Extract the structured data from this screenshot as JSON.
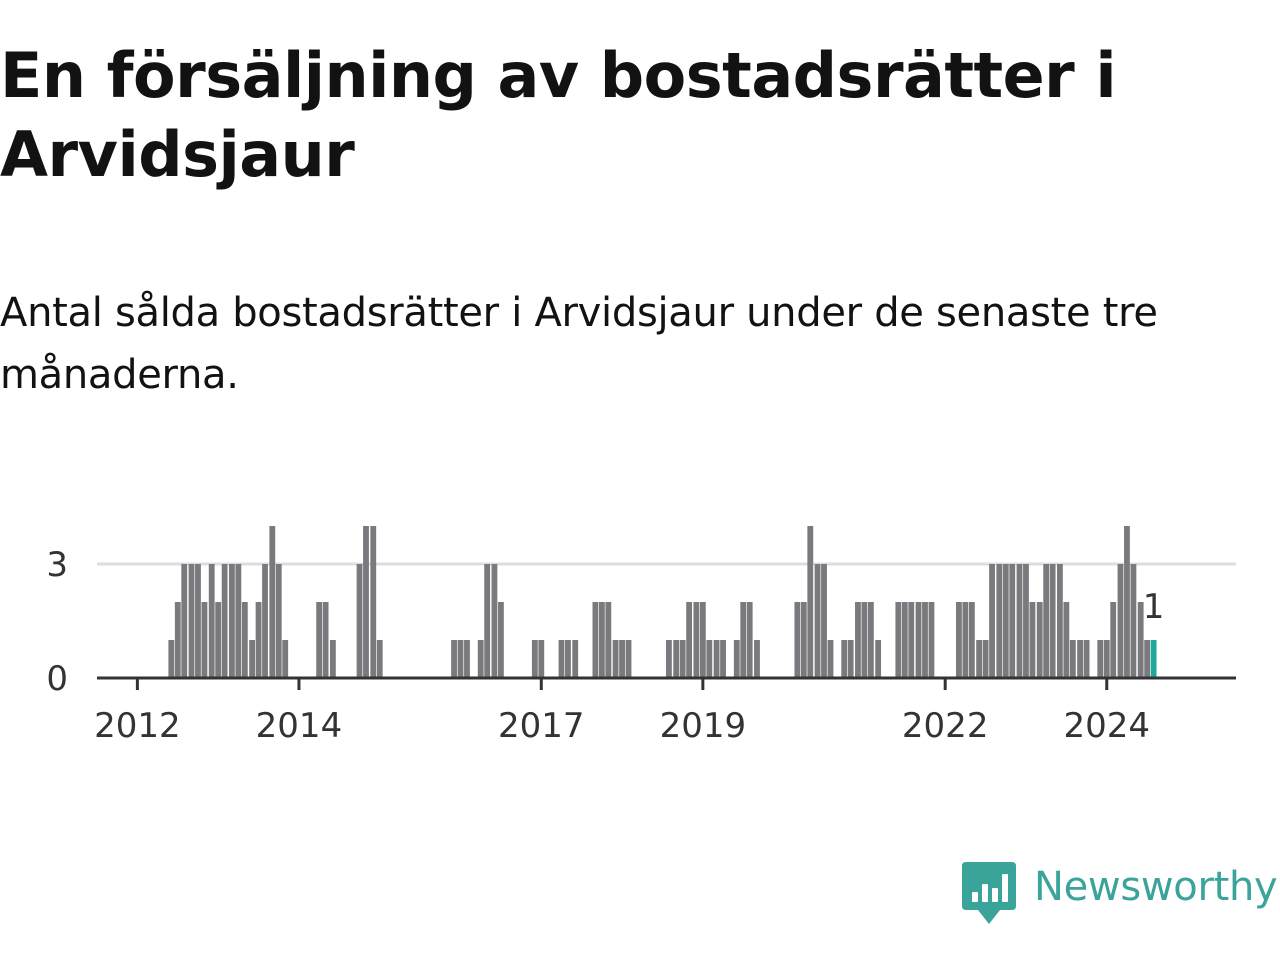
{
  "title": "En försäljning av bostadsrätter i Arvidsjaur",
  "subtitle": "Antal sålda bostadsrätter i Arvidsjaur under de senaste tre månaderna.",
  "brand": {
    "name": "Newsworthy",
    "color": "#3aa39a"
  },
  "colors": {
    "bar": "#7a797e",
    "highlight": "#20a89a",
    "grid": "#dddddd",
    "axis": "#333333"
  },
  "chart_data": {
    "type": "bar",
    "title": "En försäljning av bostadsrätter i Arvidsjaur",
    "xlabel": "",
    "ylabel": "",
    "ylim": [
      0,
      5
    ],
    "yticks": [
      0,
      3
    ],
    "xlim": [
      2011.5,
      2025.6
    ],
    "xticks": [
      {
        "label": "2012",
        "value": 2012.0
      },
      {
        "label": "2014",
        "value": 2014.0
      },
      {
        "label": "2017",
        "value": 2017.0
      },
      {
        "label": "2019",
        "value": 2019.0
      },
      {
        "label": "2022",
        "value": 2022.0
      },
      {
        "label": "2024",
        "value": 2024.0
      }
    ],
    "grid": true,
    "bar_width_years": 0.072,
    "highlight_last": true,
    "last_label": "1",
    "x": [
      2012.42,
      2012.5,
      2012.58,
      2012.67,
      2012.75,
      2012.83,
      2012.92,
      2013.0,
      2013.08,
      2013.17,
      2013.25,
      2013.33,
      2013.42,
      2013.5,
      2013.58,
      2013.67,
      2013.75,
      2013.83,
      2014.25,
      2014.33,
      2014.42,
      2014.75,
      2014.83,
      2014.92,
      2015.0,
      2015.92,
      2016.0,
      2016.08,
      2016.25,
      2016.33,
      2016.42,
      2016.5,
      2017.83,
      2016.92,
      2017.0,
      2017.25,
      2017.33,
      2017.42,
      2017.67,
      2017.75,
      2017.83,
      2017.92,
      2018.0,
      2018.08,
      2018.58,
      2018.67,
      2018.75,
      2018.83,
      2018.92,
      2019.0,
      2019.08,
      2019.17,
      2019.25,
      2019.42,
      2019.5,
      2019.58,
      2019.67,
      2020.17,
      2020.25,
      2020.33,
      2020.42,
      2020.5,
      2020.58,
      2020.75,
      2020.83,
      2020.92,
      2021.0,
      2021.08,
      2021.17,
      2021.42,
      2021.5,
      2021.58,
      2021.67,
      2021.75,
      2021.83,
      2022.17,
      2022.25,
      2022.33,
      2022.42,
      2022.5,
      2022.58,
      2022.67,
      2022.75,
      2022.83,
      2022.92,
      2023.0,
      2023.08,
      2023.17,
      2023.25,
      2023.33,
      2023.42,
      2023.5,
      2023.58,
      2023.67,
      2023.75,
      2023.92,
      2024.0,
      2024.08,
      2024.17,
      2024.25,
      2024.33,
      2024.42,
      2024.5,
      2024.58
    ],
    "values": [
      1,
      2,
      3,
      3,
      3,
      2,
      3,
      2,
      3,
      3,
      3,
      2,
      1,
      2,
      3,
      4,
      3,
      1,
      2,
      2,
      1,
      3,
      4,
      4,
      1,
      1,
      1,
      1,
      1,
      3,
      3,
      2,
      1,
      1,
      1,
      1,
      1,
      1,
      2,
      2,
      2,
      1,
      1,
      1,
      1,
      1,
      1,
      2,
      2,
      2,
      1,
      1,
      1,
      1,
      2,
      2,
      1,
      2,
      2,
      4,
      3,
      3,
      1,
      1,
      1,
      2,
      2,
      2,
      1,
      2,
      2,
      2,
      2,
      2,
      2,
      2,
      2,
      2,
      1,
      1,
      3,
      3,
      3,
      3,
      3,
      3,
      2,
      2,
      3,
      3,
      3,
      2,
      1,
      1,
      1,
      1,
      1,
      2,
      3,
      4,
      3,
      2,
      1,
      1
    ]
  }
}
